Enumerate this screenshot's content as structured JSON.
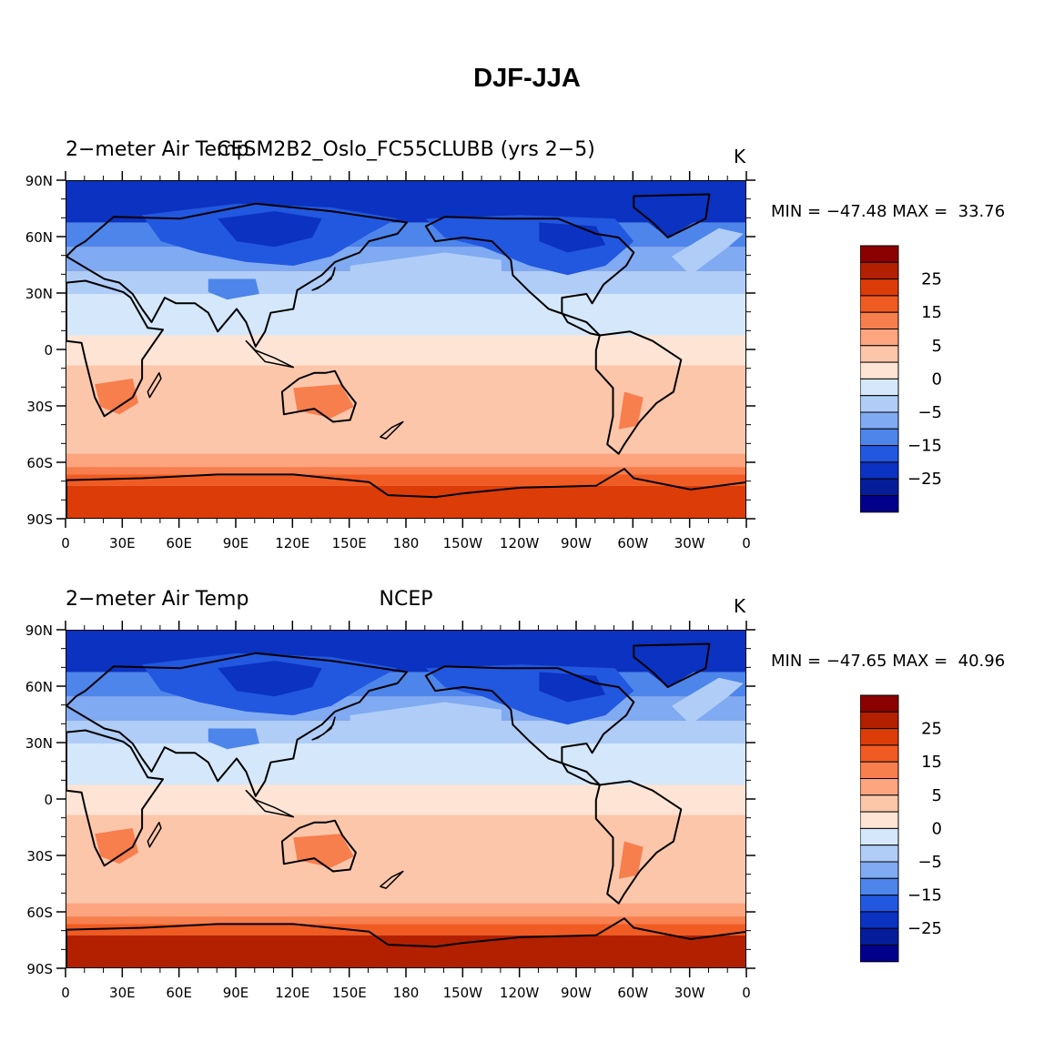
{
  "title": "DJF-JJA",
  "panels": [
    {
      "left_string": "2−meter Air Temp",
      "center_string": "CESM2B2_Oslo_FC55CLUBB (yrs 2−5)",
      "right_string": "K",
      "min_label": "MIN = ",
      "min_value": "−47.48",
      "max_label": "MAX = ",
      "max_value": "33.76"
    },
    {
      "left_string": "2−meter Air Temp",
      "center_string": "NCEP",
      "right_string": "K",
      "min_label": "MIN = ",
      "min_value": "−47.65",
      "max_label": "MAX = ",
      "max_value": "40.96"
    }
  ],
  "lat_ticks": [
    "90N",
    "60N",
    "30N",
    "0",
    "30S",
    "60S",
    "90S"
  ],
  "lon_ticks": [
    "0",
    "30E",
    "60E",
    "90E",
    "120E",
    "150E",
    "180",
    "150W",
    "120W",
    "90W",
    "60W",
    "30W",
    "0"
  ],
  "colorbar": {
    "colors": [
      "#8b0000",
      "#b22000",
      "#dc3c08",
      "#f05b23",
      "#f77e4d",
      "#fca57f",
      "#fcc6ab",
      "#fde4d4",
      "#d5e8fb",
      "#b0cdf7",
      "#80aaf1",
      "#4d85eb",
      "#2257e0",
      "#0b32c0",
      "#061d9a",
      "#00008b"
    ],
    "labels": [
      "25",
      "15",
      "5",
      "0",
      "−5",
      "−15",
      "−25"
    ]
  }
}
